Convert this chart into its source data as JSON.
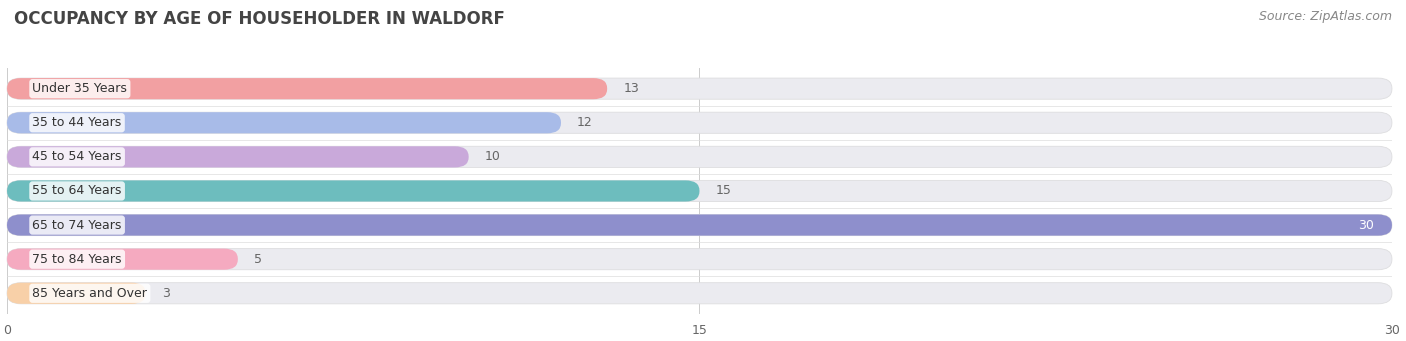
{
  "title": "OCCUPANCY BY AGE OF HOUSEHOLDER IN WALDORF",
  "source": "Source: ZipAtlas.com",
  "categories": [
    "Under 35 Years",
    "35 to 44 Years",
    "45 to 54 Years",
    "55 to 64 Years",
    "65 to 74 Years",
    "75 to 84 Years",
    "85 Years and Over"
  ],
  "values": [
    13,
    12,
    10,
    15,
    30,
    5,
    3
  ],
  "bar_colors": [
    "#F2A0A0",
    "#A8BBE8",
    "#C8A8D8",
    "#6DBDBE",
    "#8E8FCC",
    "#F5AABU",
    "#F8D0A8"
  ],
  "bar_colors_fixed": [
    "#F2A0A2",
    "#A8BBE8",
    "#C9A9DA",
    "#6DBDBE",
    "#8E8FCC",
    "#F5AAC0",
    "#F8D0A8"
  ],
  "bar_height": 0.62,
  "xlim": [
    0,
    30
  ],
  "xticks": [
    0,
    15,
    30
  ],
  "background_color": "#ffffff",
  "bar_bg_color": "#ebebf0",
  "title_fontsize": 12,
  "label_fontsize": 9,
  "value_fontsize": 9,
  "source_fontsize": 9,
  "title_color": "#444444",
  "label_color": "#555555",
  "value_color_inside": "#ffffff",
  "value_color_outside": "#666666",
  "rounding": 0.3
}
